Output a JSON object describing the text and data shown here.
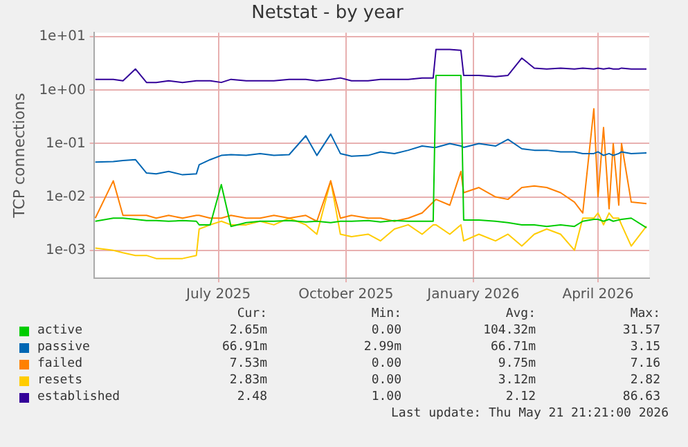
{
  "chart_data": {
    "type": "line",
    "title": "Netstat - by year",
    "ylabel": "TCP connections",
    "log": "y",
    "grid": true,
    "legend": "bottom",
    "marker": "none",
    "line_style": "solid",
    "ylim": [
      0.0003,
      12
    ],
    "yticks": [
      {
        "value": 10,
        "label": "1e+01"
      },
      {
        "value": 1,
        "label": "1e+00"
      },
      {
        "value": 0.1,
        "label": "1e-01"
      },
      {
        "value": 0.01,
        "label": "1e-02"
      },
      {
        "value": 0.001,
        "label": "1e-03"
      }
    ],
    "xlim": [
      "2025-04-17",
      "2026-05-23"
    ],
    "xticks": [
      {
        "value": "2025-07-16",
        "label": "July 2025"
      },
      {
        "value": "2025-10-16",
        "label": "October 2025"
      },
      {
        "value": "2026-01-16",
        "label": "January 2026"
      },
      {
        "value": "2026-04-16",
        "label": "April 2026"
      }
    ],
    "x": [
      "2025-04-18",
      "2025-05-01",
      "2025-05-08",
      "2025-05-17",
      "2025-05-25",
      "2025-06-01",
      "2025-06-10",
      "2025-06-20",
      "2025-06-30",
      "2025-07-02",
      "2025-07-10",
      "2025-07-18",
      "2025-07-25",
      "2025-08-05",
      "2025-08-15",
      "2025-08-25",
      "2025-09-05",
      "2025-09-17",
      "2025-09-25",
      "2025-10-05",
      "2025-10-12",
      "2025-10-20",
      "2025-11-01",
      "2025-11-10",
      "2025-11-20",
      "2025-11-30",
      "2025-12-10",
      "2025-12-18",
      "2025-12-20",
      "2025-12-30",
      "2026-01-07",
      "2026-01-09",
      "2026-01-20",
      "2026-02-01",
      "2026-02-10",
      "2026-02-20",
      "2026-03-01",
      "2026-03-10",
      "2026-03-20",
      "2026-03-30",
      "2026-04-05",
      "2026-04-13",
      "2026-04-16",
      "2026-04-20",
      "2026-04-24",
      "2026-04-27",
      "2026-05-01",
      "2026-05-03",
      "2026-05-10",
      "2026-05-21"
    ],
    "series": [
      {
        "name": "active",
        "color": "#00cc00",
        "values": [
          0.0035,
          0.004,
          0.004,
          0.0038,
          0.0036,
          0.0036,
          0.0035,
          0.0036,
          0.0035,
          0.003,
          0.003,
          0.017,
          0.0028,
          0.0033,
          0.0035,
          0.0035,
          0.0036,
          0.0034,
          0.0035,
          0.0033,
          0.0035,
          0.0035,
          0.0036,
          0.0034,
          0.0036,
          0.0035,
          0.0035,
          0.0035,
          1.9,
          1.9,
          1.9,
          0.0037,
          0.0037,
          0.0035,
          0.0033,
          0.003,
          0.003,
          0.0028,
          0.003,
          0.0028,
          0.0035,
          0.0038,
          0.0038,
          0.0035,
          0.0038,
          0.0035,
          0.0037,
          0.0038,
          0.004,
          0.00265
        ]
      },
      {
        "name": "passive",
        "color": "#0066b3",
        "values": [
          0.045,
          0.046,
          0.048,
          0.05,
          0.028,
          0.027,
          0.03,
          0.026,
          0.027,
          0.04,
          0.05,
          0.06,
          0.062,
          0.06,
          0.065,
          0.06,
          0.062,
          0.14,
          0.06,
          0.15,
          0.065,
          0.058,
          0.06,
          0.07,
          0.065,
          0.075,
          0.09,
          0.085,
          0.085,
          0.1,
          0.09,
          0.085,
          0.1,
          0.09,
          0.12,
          0.08,
          0.075,
          0.075,
          0.07,
          0.07,
          0.065,
          0.065,
          0.07,
          0.06,
          0.065,
          0.06,
          0.065,
          0.07,
          0.065,
          0.067
        ]
      },
      {
        "name": "failed",
        "color": "#ff8000",
        "values": [
          0.004,
          0.02,
          0.0045,
          0.0045,
          0.0045,
          0.004,
          0.0045,
          0.004,
          0.0045,
          0.0045,
          0.004,
          0.004,
          0.0045,
          0.004,
          0.004,
          0.0045,
          0.004,
          0.0045,
          0.0035,
          0.02,
          0.004,
          0.0045,
          0.004,
          0.004,
          0.0035,
          0.004,
          0.005,
          0.008,
          0.009,
          0.007,
          0.03,
          0.012,
          0.015,
          0.01,
          0.009,
          0.015,
          0.016,
          0.015,
          0.012,
          0.008,
          0.005,
          0.45,
          0.01,
          0.2,
          0.006,
          0.1,
          0.007,
          0.1,
          0.008,
          0.0075
        ]
      },
      {
        "name": "resets",
        "color": "#ffcc00",
        "values": [
          0.0011,
          0.001,
          0.0009,
          0.0008,
          0.0008,
          0.0007,
          0.0007,
          0.0007,
          0.0008,
          0.0025,
          0.003,
          0.0035,
          0.003,
          0.003,
          0.0035,
          0.003,
          0.004,
          0.003,
          0.002,
          0.02,
          0.002,
          0.0018,
          0.002,
          0.0015,
          0.0025,
          0.003,
          0.002,
          0.003,
          0.003,
          0.002,
          0.003,
          0.0015,
          0.002,
          0.0015,
          0.002,
          0.0012,
          0.002,
          0.0025,
          0.002,
          0.001,
          0.004,
          0.004,
          0.005,
          0.003,
          0.005,
          0.004,
          0.004,
          0.003,
          0.0012,
          0.00283
        ]
      },
      {
        "name": "established",
        "color": "#330099",
        "values": [
          1.6,
          1.6,
          1.5,
          2.5,
          1.4,
          1.4,
          1.5,
          1.4,
          1.5,
          1.5,
          1.5,
          1.4,
          1.6,
          1.5,
          1.5,
          1.5,
          1.6,
          1.6,
          1.5,
          1.6,
          1.7,
          1.5,
          1.5,
          1.6,
          1.6,
          1.6,
          1.7,
          1.7,
          5.8,
          5.8,
          5.6,
          1.9,
          1.9,
          1.8,
          1.9,
          4.0,
          2.6,
          2.5,
          2.6,
          2.5,
          2.6,
          2.5,
          2.6,
          2.5,
          2.6,
          2.5,
          2.5,
          2.6,
          2.5,
          2.5
        ]
      }
    ],
    "annotations": [
      "Cur:",
      "Min:",
      "Avg:",
      "Max:",
      "2.65m",
      "0.00",
      "104.32m",
      "31.57",
      "66.91m",
      "2.99m",
      "66.71m",
      "3.15",
      "7.53m",
      "0.00",
      "9.75m",
      "7.16",
      "2.83m",
      "0.00",
      "3.12m",
      "2.82",
      "2.48",
      "1.00",
      "2.12",
      "86.63",
      "Last update: Thu May 21 21:21:00 2026"
    ]
  }
}
